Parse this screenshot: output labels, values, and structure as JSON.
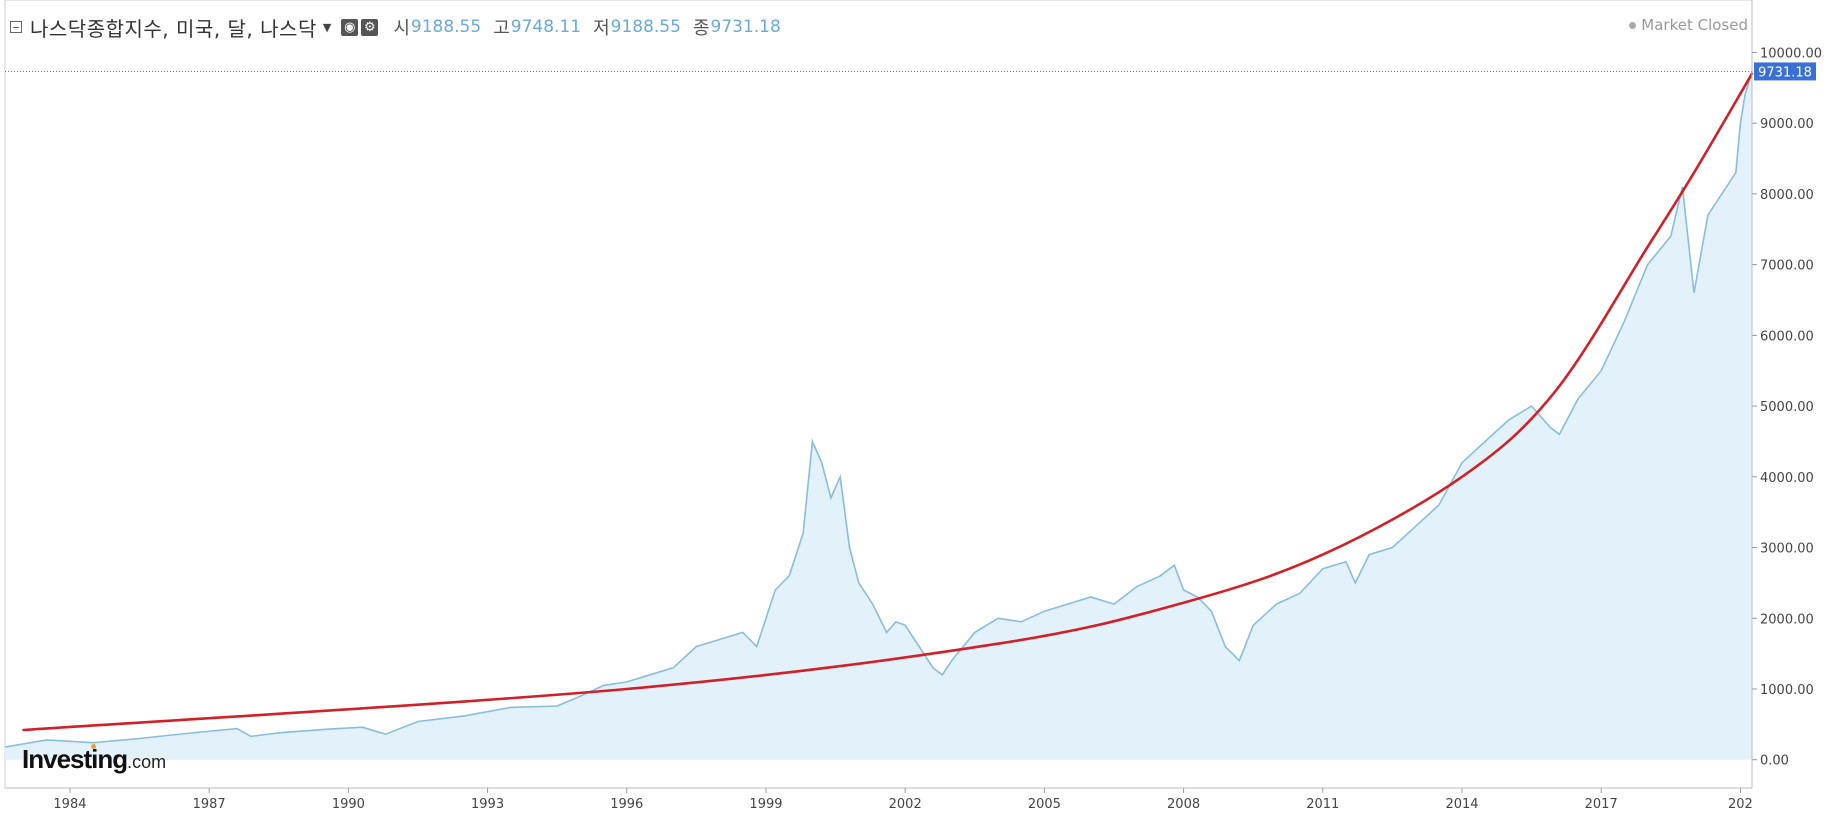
{
  "header": {
    "title": "나스닥종합지수, 미국, 달, 나스닥",
    "ohlc": [
      {
        "key": "시",
        "value": "9188.55"
      },
      {
        "key": "고",
        "value": "9748.11"
      },
      {
        "key": "저",
        "value": "9188.55"
      },
      {
        "key": "종",
        "value": "9731.18"
      }
    ],
    "market_status": "Market Closed"
  },
  "logo": {
    "main": "Investing",
    "suffix": ".com"
  },
  "colors": {
    "area_line": "#89bde0",
    "area_fill": "#e2f1fa",
    "trend": "#d12027",
    "price_label_bg": "#3a6fd8",
    "current_line": "#5b6ee0"
  },
  "chart_data": {
    "type": "area",
    "xlabel": "",
    "ylabel": "",
    "x_ticks": [
      "1984",
      "1987",
      "1990",
      "1993",
      "1996",
      "1999",
      "2002",
      "2005",
      "2008",
      "2011",
      "2014",
      "2017",
      "202"
    ],
    "y_ticks": [
      "0.00",
      "1000.00",
      "2000.00",
      "3000.00",
      "4000.00",
      "5000.00",
      "6000.00",
      "7000.00",
      "8000.00",
      "9000.00",
      "10000.00"
    ],
    "xlim": [
      1982.6,
      2020.25
    ],
    "ylim": [
      -400,
      10600
    ],
    "current_value": "9731.18",
    "series": [
      {
        "x": [
          1982.6,
          1983.5,
          1984.5,
          1985.5,
          1986.5,
          1987.6,
          1987.9,
          1988.5,
          1989.5,
          1990.3,
          1990.8,
          1991.5,
          1992.5,
          1993.5,
          1994.5,
          1995.0,
          1995.5,
          1996.0,
          1996.5,
          1997.0,
          1997.5,
          1998.0,
          1998.5,
          1998.8,
          1999.2,
          1999.5,
          1999.8,
          2000.0,
          2000.2,
          2000.4,
          2000.6,
          2000.8,
          2001.0,
          2001.3,
          2001.6,
          2001.8,
          2002.0,
          2002.3,
          2002.6,
          2002.8,
          2003.0,
          2003.5,
          2004.0,
          2004.5,
          2005.0,
          2005.5,
          2006.0,
          2006.5,
          2007.0,
          2007.5,
          2007.8,
          2008.0,
          2008.3,
          2008.6,
          2008.9,
          2009.2,
          2009.5,
          2010.0,
          2010.5,
          2011.0,
          2011.5,
          2011.7,
          2012.0,
          2012.5,
          2013.0,
          2013.5,
          2014.0,
          2014.5,
          2015.0,
          2015.5,
          2015.9,
          2016.1,
          2016.5,
          2017.0,
          2017.5,
          2018.0,
          2018.5,
          2018.75,
          2019.0,
          2019.3,
          2019.6,
          2019.9,
          2020.0,
          2020.1,
          2020.25
        ],
        "values": [
          180,
          280,
          240,
          300,
          370,
          440,
          330,
          380,
          430,
          460,
          360,
          540,
          620,
          740,
          760,
          900,
          1050,
          1100,
          1200,
          1300,
          1600,
          1700,
          1800,
          1600,
          2400,
          2600,
          3200,
          4500,
          4200,
          3700,
          4000,
          3000,
          2500,
          2200,
          1800,
          1950,
          1900,
          1600,
          1300,
          1200,
          1400,
          1800,
          2000,
          1950,
          2100,
          2200,
          2300,
          2200,
          2450,
          2600,
          2750,
          2400,
          2300,
          2100,
          1600,
          1400,
          1900,
          2200,
          2350,
          2700,
          2800,
          2500,
          2900,
          3000,
          3300,
          3600,
          4200,
          4500,
          4800,
          5000,
          4700,
          4600,
          5100,
          5500,
          6200,
          7000,
          7400,
          8100,
          6600,
          7700,
          8000,
          8300,
          9000,
          9400,
          9731
        ]
      },
      {
        "x": [
          1983.0,
          1996.0,
          2004.0,
          2008.0,
          2011.0,
          2014.0,
          2016.0,
          2018.0,
          2019.0,
          2020.25
        ],
        "values": [
          420,
          1000,
          1640,
          2220,
          2900,
          4000,
          5200,
          7250,
          8300,
          9700
        ]
      }
    ]
  }
}
